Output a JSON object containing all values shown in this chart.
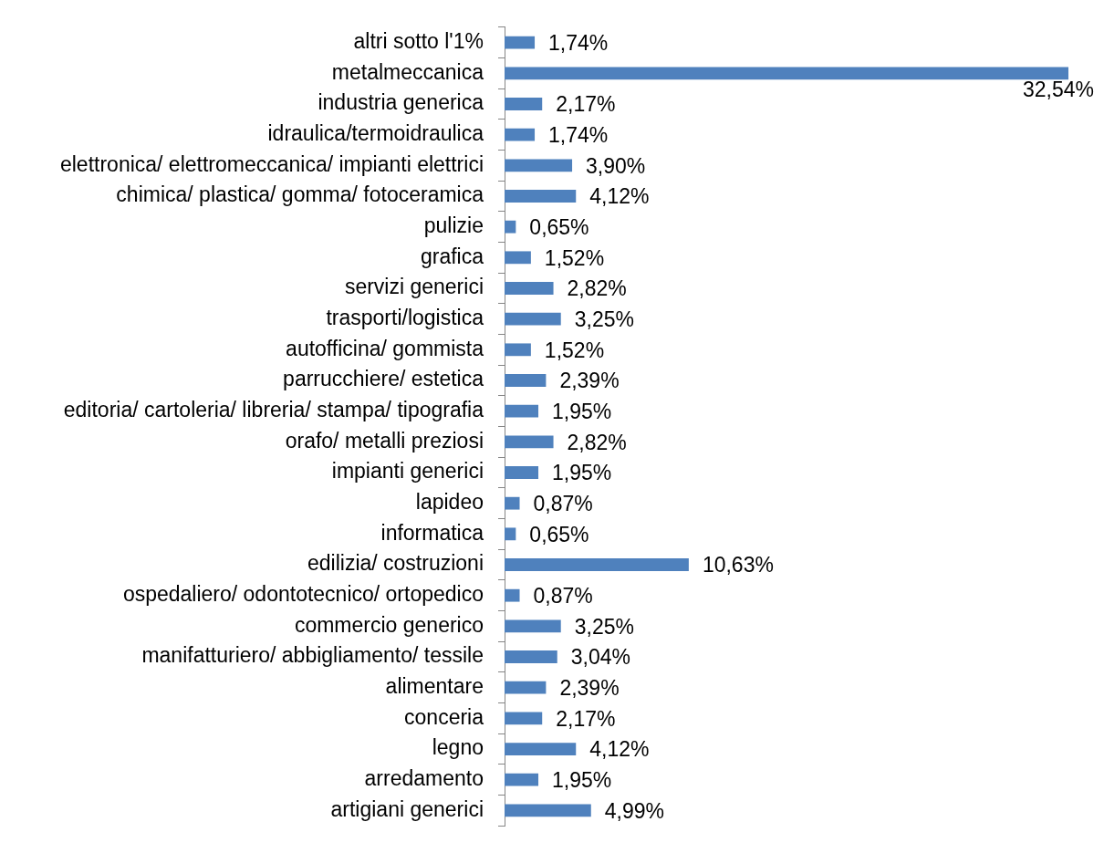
{
  "chart_data": {
    "type": "bar",
    "orientation": "horizontal",
    "color": "#4f81bd",
    "tick_labels": "y",
    "categories": [
      "altri sotto l'1%",
      "metalmeccanica",
      "industria generica",
      "idraulica/termoidraulica",
      "elettronica/ elettromeccanica/ impianti elettrici",
      "chimica/ plastica/ gomma/ fotoceramica",
      "pulizie",
      "grafica",
      "servizi generici",
      "trasporti/logistica",
      "autofficina/ gommista",
      "parrucchiere/ estetica",
      "editoria/ cartoleria/ libreria/ stampa/ tipografia",
      "orafo/ metalli preziosi",
      "impianti generici",
      "lapideo",
      "informatica",
      "edilizia/ costruzioni",
      "ospedaliero/ odontotecnico/ ortopedico",
      "commercio generico",
      "manifatturiero/ abbigliamento/ tessile",
      "alimentare",
      "conceria",
      "legno",
      "arredamento",
      "artigiani generici"
    ],
    "values": [
      1.74,
      32.54,
      2.17,
      1.74,
      3.9,
      4.12,
      0.65,
      1.52,
      2.82,
      3.25,
      1.52,
      2.39,
      1.95,
      2.82,
      1.95,
      0.87,
      0.65,
      10.63,
      0.87,
      3.25,
      3.04,
      2.39,
      2.17,
      4.12,
      1.95,
      4.99
    ],
    "value_labels": [
      "1,74%",
      "32,54%",
      "2,17%",
      "1,74%",
      "3,90%",
      "4,12%",
      "0,65%",
      "1,52%",
      "2,82%",
      "3,25%",
      "1,52%",
      "2,39%",
      "1,95%",
      "2,82%",
      "1,95%",
      "0,87%",
      "0,65%",
      "10,63%",
      "0,87%",
      "3,25%",
      "3,04%",
      "2,39%",
      "2,17%",
      "4,12%",
      "1,95%",
      "4,99%"
    ]
  }
}
